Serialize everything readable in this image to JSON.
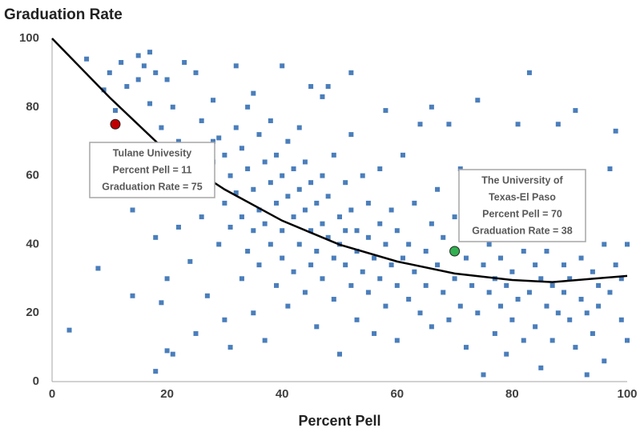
{
  "chart_data": {
    "type": "scatter",
    "title": "Graduation Rate",
    "xlabel": "Percent Pell",
    "xlim": [
      0,
      100
    ],
    "ylim": [
      0,
      100
    ],
    "xticks": [
      0,
      20,
      40,
      60,
      80,
      100
    ],
    "yticks": [
      0,
      20,
      40,
      60,
      80,
      100
    ],
    "series": [
      {
        "type": "scatter",
        "color": "#4a7ebb",
        "x": [
          3,
          6,
          8,
          9,
          10,
          11,
          12,
          13,
          14,
          14,
          15,
          15,
          16,
          16,
          17,
          17,
          18,
          18,
          18,
          19,
          19,
          20,
          20,
          21,
          21,
          22,
          22,
          23,
          23,
          24,
          24,
          25,
          25,
          25,
          26,
          26,
          27,
          27,
          28,
          28,
          29,
          29,
          30,
          30,
          30,
          31,
          31,
          31,
          32,
          32,
          32,
          33,
          33,
          33,
          34,
          34,
          34,
          35,
          35,
          35,
          36,
          36,
          36,
          37,
          37,
          37,
          38,
          38,
          38,
          39,
          39,
          39,
          40,
          40,
          40,
          40,
          41,
          41,
          41,
          42,
          42,
          42,
          43,
          43,
          43,
          44,
          44,
          44,
          45,
          45,
          45,
          45,
          46,
          46,
          46,
          47,
          47,
          47,
          48,
          48,
          48,
          49,
          49,
          49,
          50,
          50,
          50,
          51,
          51,
          51,
          52,
          52,
          52,
          53,
          53,
          53,
          54,
          54,
          55,
          55,
          55,
          56,
          56,
          57,
          57,
          57,
          58,
          58,
          59,
          59,
          60,
          60,
          60,
          61,
          61,
          62,
          62,
          63,
          63,
          64,
          64,
          65,
          65,
          66,
          66,
          67,
          67,
          68,
          68,
          69,
          69,
          70,
          70,
          71,
          71,
          72,
          72,
          73,
          73,
          74,
          74,
          75,
          75,
          76,
          76,
          77,
          77,
          78,
          78,
          79,
          79,
          80,
          80,
          81,
          81,
          82,
          82,
          83,
          83,
          84,
          84,
          85,
          85,
          86,
          86,
          87,
          87,
          88,
          88,
          89,
          89,
          90,
          90,
          91,
          91,
          92,
          92,
          93,
          93,
          94,
          94,
          95,
          95,
          96,
          96,
          97,
          97,
          98,
          98,
          99,
          99,
          100,
          100,
          47,
          52,
          66,
          58,
          35,
          28,
          20
        ],
        "values": [
          15,
          94,
          33,
          85,
          90,
          79,
          93,
          86,
          25,
          50,
          95,
          88,
          92,
          60,
          81,
          96,
          3,
          42,
          90,
          74,
          23,
          30,
          88,
          80,
          8,
          70,
          45,
          93,
          62,
          55,
          35,
          90,
          68,
          14,
          48,
          76,
          58,
          25,
          82,
          64,
          40,
          71,
          52,
          18,
          66,
          60,
          45,
          10,
          92,
          74,
          55,
          48,
          68,
          30,
          62,
          38,
          80,
          56,
          44,
          20,
          72,
          50,
          34,
          64,
          46,
          12,
          58,
          40,
          76,
          52,
          28,
          66,
          92,
          44,
          60,
          36,
          54,
          70,
          22,
          48,
          62,
          32,
          56,
          40,
          74,
          50,
          26,
          64,
          44,
          58,
          34,
          86,
          52,
          38,
          16,
          46,
          60,
          30,
          42,
          86,
          54,
          36,
          66,
          24,
          40,
          48,
          8,
          58,
          34,
          44,
          28,
          50,
          72,
          38,
          44,
          18,
          60,
          32,
          42,
          26,
          52,
          36,
          14,
          46,
          30,
          62,
          40,
          22,
          34,
          50,
          28,
          44,
          12,
          66,
          36,
          24,
          40,
          32,
          52,
          20,
          75,
          38,
          28,
          46,
          16,
          34,
          56,
          26,
          42,
          18,
          75,
          30,
          48,
          22,
          62,
          36,
          10,
          28,
          44,
          82,
          20,
          34,
          2,
          26,
          40,
          14,
          30,
          22,
          36,
          8,
          28,
          32,
          18,
          75,
          24,
          38,
          12,
          90,
          26,
          34,
          16,
          30,
          4,
          22,
          38,
          28,
          12,
          75,
          20,
          34,
          26,
          18,
          30,
          79,
          10,
          24,
          36,
          2,
          20,
          32,
          14,
          28,
          22,
          40,
          6,
          62,
          26,
          73,
          34,
          18,
          30,
          12,
          40,
          83,
          90,
          80,
          79,
          84,
          70,
          9
        ]
      },
      {
        "type": "line",
        "color": "#000000",
        "x": [
          0,
          10,
          20,
          30,
          40,
          50,
          60,
          70,
          80,
          87,
          100
        ],
        "values": [
          100,
          82.8,
          66.9,
          56,
          46.9,
          39.9,
          35,
          31.5,
          29.6,
          29,
          30.8
        ]
      },
      {
        "type": "marker",
        "color": "#c00000",
        "x": [
          11
        ],
        "values": [
          75
        ]
      },
      {
        "type": "marker",
        "color": "#33b050",
        "x": [
          70
        ],
        "values": [
          38
        ]
      }
    ],
    "annotations": [
      {
        "lines": [
          "Tulane Univesity",
          "Percent Pell = 11",
          "Graduation Rate = 75"
        ]
      },
      {
        "lines": [
          "The University of",
          "Texas-El Paso",
          "Percent Pell = 70",
          "Graduation Rate = 38"
        ]
      }
    ]
  }
}
